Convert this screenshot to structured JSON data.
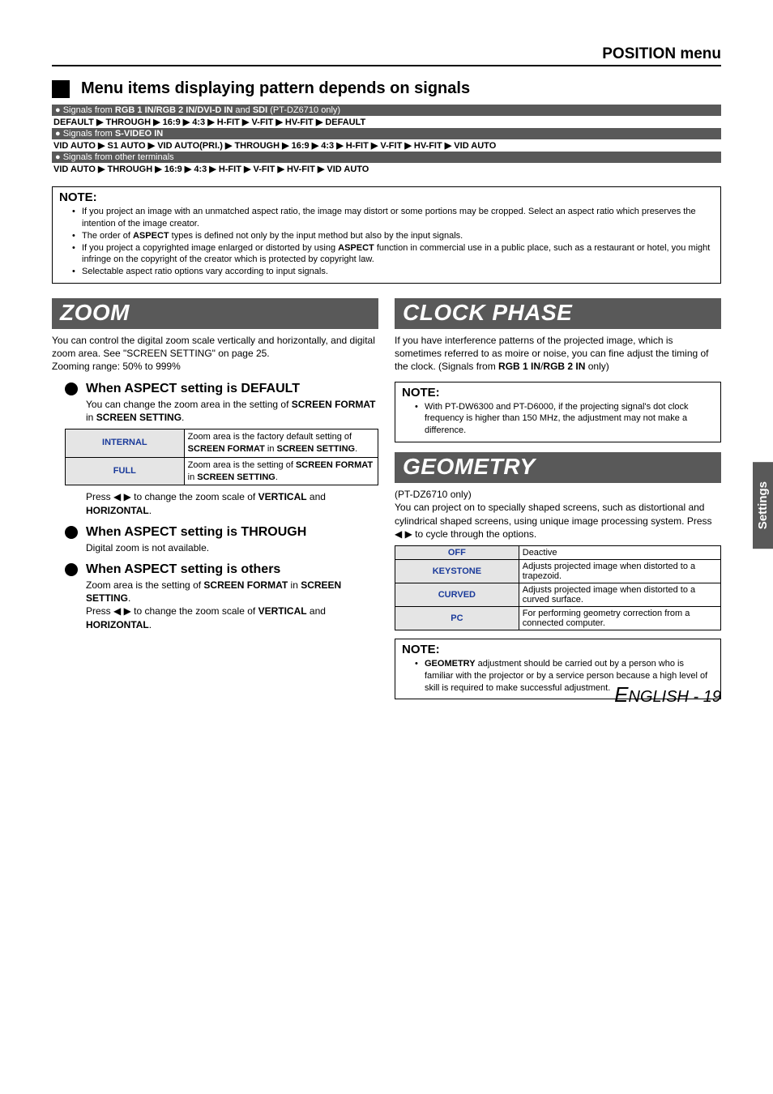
{
  "header": {
    "title": "POSITION menu"
  },
  "section1": {
    "heading": "Menu items displaying pattern depends on signals",
    "bullet1_prefix": "Signals from ",
    "bullet1_bold": "RGB 1 IN/RGB 2 IN/DVI-D IN",
    "bullet1_mid": " and ",
    "bullet1_bold2": "SDI",
    "bullet1_suffix": " (PT-DZ6710 only)",
    "flow1": [
      "DEFAULT",
      "THROUGH",
      "16:9",
      "4:3",
      "H-FIT",
      "V-FIT",
      "HV-FIT",
      "DEFAULT"
    ],
    "bullet2_prefix": "Signals from ",
    "bullet2_bold": "S-VIDEO IN",
    "flow2": [
      "VID AUTO",
      "S1 AUTO",
      "VID AUTO(PRI.)",
      "THROUGH",
      "16:9",
      "4:3",
      "H-FIT",
      "V-FIT",
      "HV-FIT",
      "VID AUTO"
    ],
    "bullet3": "Signals from other terminals",
    "flow3": [
      "VID AUTO",
      "THROUGH",
      "16:9",
      "4:3",
      "H-FIT",
      "V-FIT",
      "HV-FIT",
      "VID AUTO"
    ]
  },
  "note1": {
    "title": "NOTE:",
    "items": [
      "If you project an image with an unmatched aspect ratio, the image may distort or some portions may be cropped. Select an aspect ratio which preserves the intention of the image creator.",
      "The order of ASPECT types is defined not only by the input method but also by the input signals.",
      "If you project a copyrighted image enlarged or distorted by using ASPECT function in commercial use in a public place, such as a restaurant or hotel, you might infringe on the copyright of the creator which is protected by copyright law.",
      "Selectable aspect ratio options vary according to input signals."
    ]
  },
  "zoom": {
    "title": "ZOOM",
    "body_text": "You can control the digital zoom scale vertically and horizontally, and digital zoom area. See \"SCREEN SETTING\" on page 25.\nZooming range: 50% to 999%",
    "sub1": "When ASPECT setting is DEFAULT",
    "sub1_body_a": "You can change the zoom area in the setting of ",
    "sub1_body_b": "SCREEN FORMAT",
    "sub1_body_c": " in ",
    "sub1_body_d": "SCREEN SETTING",
    "sub1_body_e": ".",
    "table": [
      {
        "k": "INTERNAL",
        "v_pre": "Zoom area is the factory default setting of ",
        "v_b1": "SCREEN FORMAT",
        "v_mid": " in ",
        "v_b2": "SCREEN SETTING",
        "v_suf": "."
      },
      {
        "k": "FULL",
        "v_pre": "Zoom area is the setting of ",
        "v_b1": "SCREEN FORMAT",
        "v_mid": " in ",
        "v_b2": "SCREEN SETTING",
        "v_suf": "."
      }
    ],
    "sub1_after_a": "Press ◀ ▶ to change the zoom scale of ",
    "sub1_after_b": "VERTICAL",
    "sub1_after_c": " and ",
    "sub1_after_d": "HORIZONTAL",
    "sub1_after_e": ".",
    "sub2": "When ASPECT setting is THROUGH",
    "sub2_body": "Digital zoom is not available.",
    "sub3": "When ASPECT setting is others",
    "sub3_body_a": "Zoom area is the setting of ",
    "sub3_body_b": "SCREEN FORMAT",
    "sub3_body_c": " in ",
    "sub3_body_d": "SCREEN SETTING",
    "sub3_body_e": ".",
    "sub3_after_a": "Press ◀ ▶ to change the zoom scale of ",
    "sub3_after_b": "VERTICAL",
    "sub3_after_c": " and ",
    "sub3_after_d": "HORIZONTAL",
    "sub3_after_e": "."
  },
  "clock": {
    "title": "CLOCK PHASE",
    "body_a": "If you have interference patterns of the projected image, which is sometimes referred to as moire or noise, you can fine adjust the timing of the clock. (Signals from ",
    "body_b": "RGB 1 IN",
    "body_c": "/",
    "body_d": "RGB 2 IN",
    "body_e": " only)",
    "note_title": "NOTE:",
    "note_item": "With PT-DW6300 and PT-D6000, if the projecting signal's dot clock frequency is higher than 150 MHz, the adjustment may not make a difference."
  },
  "geometry": {
    "title": "GEOMETRY",
    "sub": "(PT-DZ6710 only)",
    "body": "You can project on to specially shaped screens, such as distortional and cylindrical shaped screens, using unique image processing system. Press ◀ ▶ to cycle through the options.",
    "table": [
      {
        "k": "OFF",
        "v": "Deactive"
      },
      {
        "k": "KEYSTONE",
        "v": "Adjusts projected image when distorted to a trapezoid."
      },
      {
        "k": "CURVED",
        "v": "Adjusts projected image when distorted to a curved surface."
      },
      {
        "k": "PC",
        "v": "For performing geometry correction from a connected computer."
      }
    ],
    "note_title": "NOTE:",
    "note_item_a": "GEOMETRY",
    "note_item_b": " adjustment should be carried out by a person who is familiar with the projector or by a service person because a high level of skill is required to make successful adjustment."
  },
  "side_tab": "Settings",
  "footer": {
    "e": "E",
    "rest": "NGLISH - 19"
  }
}
